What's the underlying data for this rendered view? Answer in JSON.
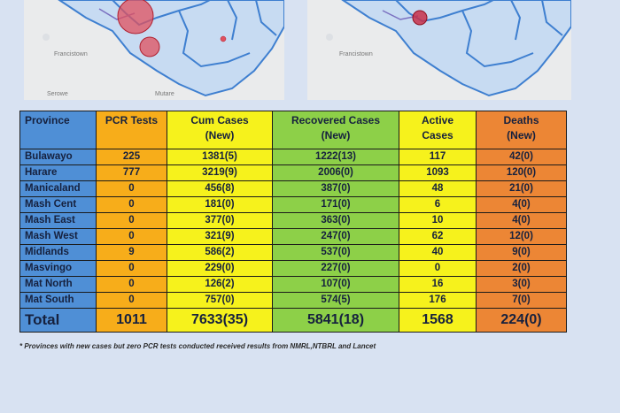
{
  "maps": {
    "left": {
      "labels": [
        "Francistown",
        "Serowe",
        "Mutare"
      ]
    },
    "right": {
      "labels": [
        "Francistown"
      ]
    }
  },
  "table": {
    "headers": {
      "province": "Province",
      "pcr": "PCR Tests",
      "cum_line1": "Cum Cases",
      "cum_line2": "(New)",
      "recovered_line1": "Recovered Cases",
      "recovered_line2": "(New)",
      "active_line1": "Active",
      "active_line2": "Cases",
      "deaths_line1": "Deaths",
      "deaths_line2": "(New)"
    },
    "rows": [
      {
        "province": "Bulawayo",
        "pcr": "225",
        "cum": "1381(5)",
        "recovered": "1222(13)",
        "active": "117",
        "deaths": "42(0)"
      },
      {
        "province": "Harare",
        "pcr": "777",
        "cum": "3219(9)",
        "recovered": "2006(0)",
        "active": "1093",
        "deaths": "120(0)"
      },
      {
        "province": "Manicaland",
        "pcr": "0",
        "cum": "456(8)",
        "recovered": "387(0)",
        "active": "48",
        "deaths": "21(0)"
      },
      {
        "province": "Mash Cent",
        "pcr": "0",
        "cum": "181(0)",
        "recovered": "171(0)",
        "active": "6",
        "deaths": "4(0)"
      },
      {
        "province": "Mash East",
        "pcr": "0",
        "cum": "377(0)",
        "recovered": "363(0)",
        "active": "10",
        "deaths": "4(0)"
      },
      {
        "province": "Mash West",
        "pcr": "0",
        "cum": "321(9)",
        "recovered": "247(0)",
        "active": "62",
        "deaths": "12(0)"
      },
      {
        "province": "Midlands",
        "pcr": "9",
        "cum": "586(2)",
        "recovered": "537(0)",
        "active": "40",
        "deaths": "9(0)"
      },
      {
        "province": "Masvingo",
        "pcr": "0",
        "cum": "229(0)",
        "recovered": "227(0)",
        "active": "0",
        "deaths": "2(0)"
      },
      {
        "province": "Mat North",
        "pcr": "0",
        "cum": "126(2)",
        "recovered": "107(0)",
        "active": "16",
        "deaths": "3(0)"
      },
      {
        "province": "Mat South",
        "pcr": "0",
        "cum": "757(0)",
        "recovered": "574(5)",
        "active": "176",
        "deaths": "7(0)"
      }
    ],
    "total": {
      "province": "Total",
      "pcr": "1011",
      "cum": "7633(35)",
      "recovered": "5841(18)",
      "active": "1568",
      "deaths": "224(0)"
    }
  },
  "footnote": "* Provinces with new cases but zero PCR tests conducted received results from NMRL,NTBRL and Lancet",
  "colors": {
    "province": "#4f8fd6",
    "pcr": "#f7ad1a",
    "cum": "#f6f21c",
    "recovered": "#8dd048",
    "active": "#f6f21c",
    "deaths": "#ec8635"
  }
}
